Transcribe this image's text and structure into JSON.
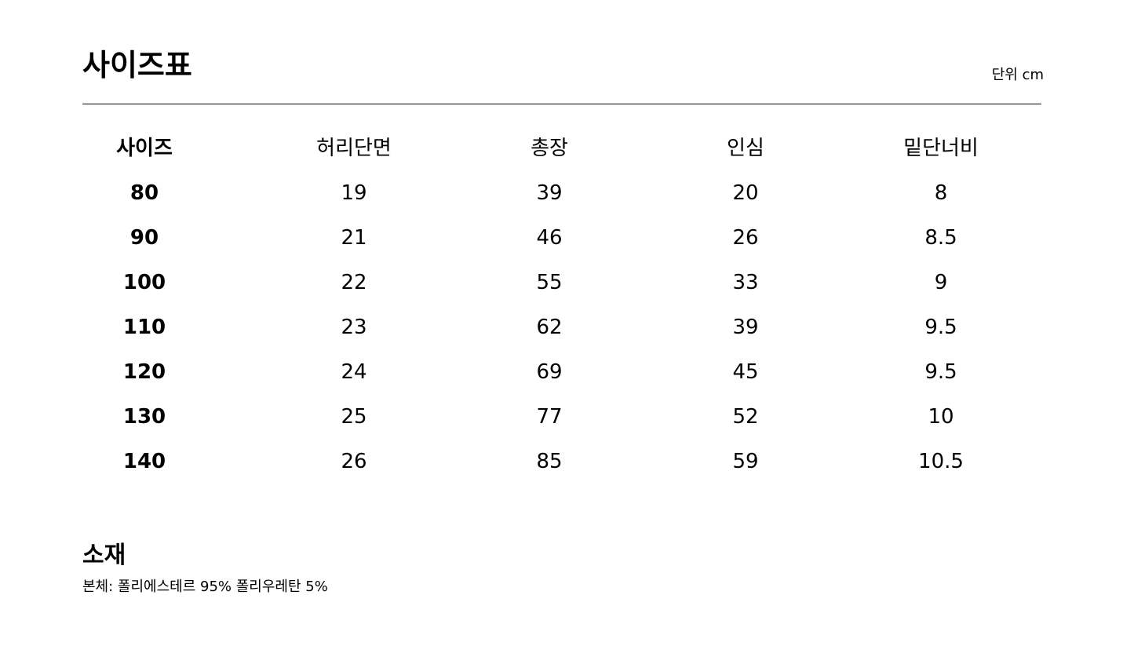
{
  "title": "사이즈표",
  "unit": "단위 cm",
  "table": {
    "headers": [
      "사이즈",
      "허리단면",
      "총장",
      "인심",
      "밑단너비"
    ],
    "rows": [
      [
        "80",
        "19",
        "39",
        "20",
        "8"
      ],
      [
        "90",
        "21",
        "46",
        "26",
        "8.5"
      ],
      [
        "100",
        "22",
        "55",
        "33",
        "9"
      ],
      [
        "110",
        "23",
        "62",
        "39",
        "9.5"
      ],
      [
        "120",
        "24",
        "69",
        "45",
        "9.5"
      ],
      [
        "130",
        "25",
        "77",
        "52",
        "10"
      ],
      [
        "140",
        "26",
        "85",
        "59",
        "10.5"
      ]
    ]
  },
  "material": {
    "title": "소재",
    "text": "본체: 폴리에스테르 95% 폴리우레탄 5%"
  }
}
